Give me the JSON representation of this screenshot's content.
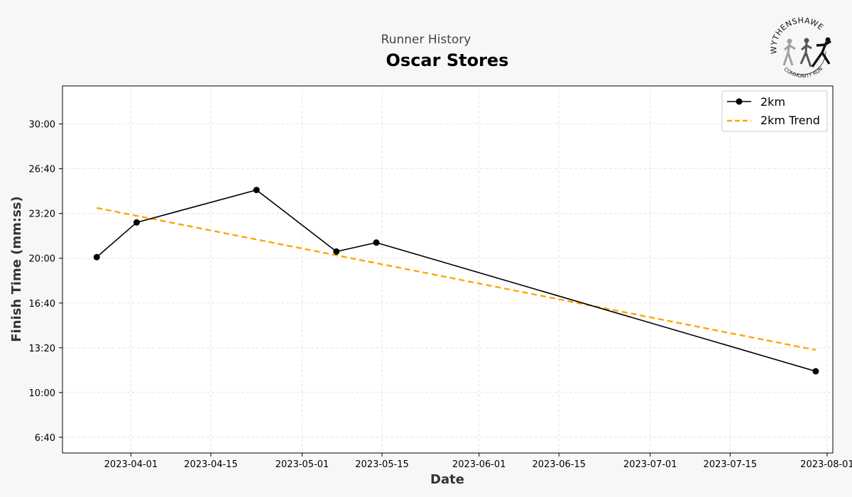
{
  "header": {
    "subtitle": "Runner History",
    "title": "Oscar Stores"
  },
  "logo": {
    "name": "wythenshawe-community-run-logo",
    "top_text": "WYTHENSHAWE",
    "bottom_text": "COMMUNITY RUN"
  },
  "chart_data": {
    "type": "line",
    "title": "Oscar Stores",
    "subtitle": "Runner History",
    "xlabel": "Date",
    "ylabel": "Finish Time (mm:ss)",
    "x_type": "date",
    "xlim": [
      "2023-03-20",
      "2023-08-02"
    ],
    "ylim_seconds": [
      330,
      1970
    ],
    "x_ticks": [
      "2023-04-01",
      "2023-04-15",
      "2023-05-01",
      "2023-05-15",
      "2023-06-01",
      "2023-06-15",
      "2023-07-01",
      "2023-07-15",
      "2023-08-01"
    ],
    "y_ticks": [
      "6:40",
      "10:00",
      "13:20",
      "16:40",
      "20:00",
      "23:20",
      "26:40",
      "30:00"
    ],
    "y_tick_seconds": [
      400,
      600,
      800,
      1000,
      1200,
      1400,
      1600,
      1800
    ],
    "grid": true,
    "legend_position": "top-right",
    "series": [
      {
        "name": "2km",
        "style": "solid-marker",
        "color": "#000000",
        "points": [
          {
            "date": "2023-03-26",
            "time": "20:05",
            "seconds": 1205
          },
          {
            "date": "2023-04-02",
            "time": "22:40",
            "seconds": 1360
          },
          {
            "date": "2023-04-23",
            "time": "25:05",
            "seconds": 1505
          },
          {
            "date": "2023-05-07",
            "time": "20:30",
            "seconds": 1230
          },
          {
            "date": "2023-05-14",
            "time": "21:10",
            "seconds": 1270
          },
          {
            "date": "2023-07-30",
            "time": "11:35",
            "seconds": 695
          }
        ]
      },
      {
        "name": "2km Trend",
        "style": "dashed",
        "color": "#ffa500",
        "points": [
          {
            "date": "2023-03-26",
            "seconds": 1425
          },
          {
            "date": "2023-07-30",
            "seconds": 790
          }
        ]
      }
    ]
  }
}
